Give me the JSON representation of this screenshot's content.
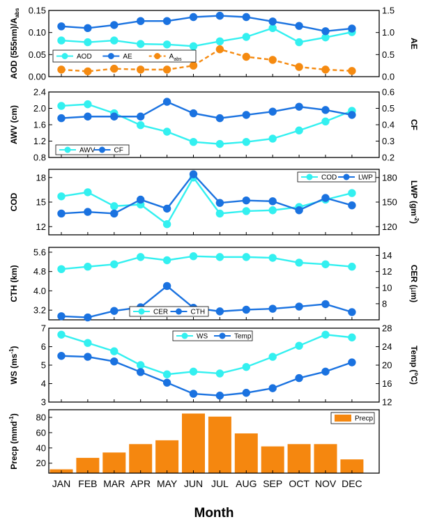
{
  "colors": {
    "cyan": "#33f0f0",
    "blue": "#1a72e0",
    "orange": "#f58a10",
    "bar": "#f5870f"
  },
  "x_axis": {
    "title": "Month",
    "months": [
      "JAN",
      "FEB",
      "MAR",
      "APR",
      "MAY",
      "JUN",
      "JUL",
      "AUG",
      "SEP",
      "OCT",
      "NOV",
      "DEC"
    ]
  },
  "chart_data": [
    {
      "type": "line",
      "left_axis": {
        "label": "AOD (555nm)/A",
        "label_sub": "abs",
        "ylim": [
          0,
          0.15
        ],
        "ticks": [
          "0.00",
          "0.05",
          "0.10",
          "0.15"
        ]
      },
      "right_axis": {
        "label": "AE",
        "ylim": [
          0,
          1.5
        ],
        "ticks": [
          "0.0",
          "0.5",
          "1.0",
          "1.5"
        ]
      },
      "legend": [
        {
          "label": "AOD"
        },
        {
          "label": "AE"
        },
        {
          "label": "A",
          "sub": "abs"
        }
      ],
      "series": [
        {
          "name": "AOD",
          "axis": "left",
          "color": "#33f0f0",
          "style": "solid",
          "values": [
            0.082,
            0.078,
            0.082,
            0.074,
            0.073,
            0.069,
            0.08,
            0.09,
            0.11,
            0.078,
            0.089,
            0.101
          ]
        },
        {
          "name": "AE",
          "axis": "right",
          "color": "#1a72e0",
          "style": "solid",
          "values": [
            1.14,
            1.1,
            1.17,
            1.26,
            1.26,
            1.35,
            1.38,
            1.35,
            1.25,
            1.15,
            1.03,
            1.09
          ]
        },
        {
          "name": "Aabs",
          "axis": "left",
          "color": "#f58a10",
          "style": "dashed",
          "values": [
            0.016,
            0.012,
            0.018,
            0.016,
            0.016,
            0.025,
            0.062,
            0.045,
            0.038,
            0.022,
            0.016,
            0.013
          ]
        }
      ]
    },
    {
      "type": "line",
      "left_axis": {
        "label": "AWV (cm)",
        "ylim": [
          0.8,
          2.4
        ],
        "ticks": [
          "0.8",
          "1.2",
          "1.6",
          "2.0",
          "2.4"
        ]
      },
      "right_axis": {
        "label": "CF",
        "ylim": [
          0.2,
          0.6
        ],
        "ticks": [
          "0.2",
          "0.3",
          "0.4",
          "0.5",
          "0.6"
        ]
      },
      "legend": [
        {
          "label": "AWV"
        },
        {
          "label": "CF"
        }
      ],
      "series": [
        {
          "name": "AWV",
          "axis": "left",
          "color": "#33f0f0",
          "style": "solid",
          "values": [
            2.06,
            2.1,
            1.88,
            1.59,
            1.43,
            1.18,
            1.13,
            1.18,
            1.26,
            1.46,
            1.68,
            1.94
          ]
        },
        {
          "name": "CF",
          "axis": "right",
          "color": "#1a72e0",
          "style": "solid",
          "values": [
            0.44,
            0.45,
            0.45,
            0.45,
            0.54,
            0.47,
            0.44,
            0.46,
            0.48,
            0.51,
            0.49,
            0.46
          ]
        }
      ]
    },
    {
      "type": "line",
      "left_axis": {
        "label": "COD",
        "ylim": [
          11,
          19
        ],
        "ticks": [
          "12",
          "15",
          "18"
        ]
      },
      "right_axis": {
        "label": "LWP (gm",
        "label_sup": "-2",
        "label_end": ")",
        "ylim": [
          110,
          190
        ],
        "ticks": [
          "120",
          "150",
          "180"
        ]
      },
      "legend": [
        {
          "label": "COD"
        },
        {
          "label": "LWP"
        }
      ],
      "series": [
        {
          "name": "COD",
          "axis": "left",
          "color": "#33f0f0",
          "style": "solid",
          "values": [
            15.7,
            16.2,
            14.5,
            14.7,
            12.3,
            18.0,
            13.6,
            13.9,
            14.0,
            14.4,
            15.3,
            16.1
          ]
        },
        {
          "name": "LWP",
          "axis": "right",
          "color": "#1a72e0",
          "style": "solid",
          "values": [
            136,
            138,
            136,
            153,
            142,
            184,
            149,
            152,
            151,
            140,
            155,
            146
          ]
        }
      ]
    },
    {
      "type": "line",
      "left_axis": {
        "label": "CTH (km)",
        "ylim": [
          2.8,
          5.8
        ],
        "ticks": [
          "3.2",
          "4.0",
          "4.8",
          "5.6"
        ]
      },
      "right_axis": {
        "label": "CER (",
        "label_mu": "µ",
        "label_end": "m)",
        "ylim": [
          6,
          15
        ],
        "ticks": [
          "8",
          "10",
          "12",
          "14"
        ]
      },
      "legend": [
        {
          "label": "CER"
        },
        {
          "label": "CTH"
        }
      ],
      "series": [
        {
          "name": "CER",
          "axis": "right",
          "color": "#33f0f0",
          "style": "solid",
          "values": [
            12.3,
            12.6,
            12.9,
            13.8,
            13.4,
            13.9,
            13.8,
            13.8,
            13.7,
            13.1,
            12.9,
            12.6
          ]
        },
        {
          "name": "CTH",
          "axis": "left",
          "color": "#1a72e0",
          "style": "solid",
          "values": [
            2.95,
            2.9,
            3.17,
            3.32,
            4.2,
            3.3,
            3.15,
            3.22,
            3.26,
            3.35,
            3.45,
            3.12
          ]
        }
      ]
    },
    {
      "type": "line",
      "left_axis": {
        "label": "WS (ms",
        "label_sup": "-1",
        "label_end": ")",
        "ylim": [
          3,
          7
        ],
        "ticks": [
          "3",
          "4",
          "5",
          "6",
          "7"
        ]
      },
      "right_axis": {
        "label": "Temp (",
        "label_sup": "o",
        "label_end": "C)",
        "ylim": [
          12,
          28
        ],
        "ticks": [
          "12",
          "16",
          "20",
          "24",
          "28"
        ]
      },
      "legend": [
        {
          "label": "WS"
        },
        {
          "label": "Temp"
        }
      ],
      "series": [
        {
          "name": "WS",
          "axis": "left",
          "color": "#33f0f0",
          "style": "solid",
          "values": [
            6.65,
            6.2,
            5.75,
            5.0,
            4.5,
            4.65,
            4.55,
            4.9,
            5.45,
            6.05,
            6.65,
            6.5
          ]
        },
        {
          "name": "Temp",
          "axis": "right",
          "color": "#1a72e0",
          "style": "solid",
          "values": [
            22.0,
            21.8,
            20.8,
            18.5,
            16.2,
            13.8,
            13.4,
            14.0,
            15.0,
            17.2,
            18.6,
            20.6
          ]
        }
      ]
    },
    {
      "type": "bar",
      "left_axis": {
        "label": "Precp (mmd",
        "label_sup": "-1",
        "label_end": ")",
        "ylim": [
          7,
          90
        ],
        "ticks": [
          "20",
          "40",
          "60",
          "80"
        ]
      },
      "legend": [
        {
          "label": "Precp"
        }
      ],
      "series": [
        {
          "name": "Precp",
          "color": "#f5870f",
          "values": [
            12,
            27,
            34,
            45,
            50,
            85,
            81,
            59,
            42,
            45,
            45,
            25
          ]
        }
      ]
    }
  ]
}
